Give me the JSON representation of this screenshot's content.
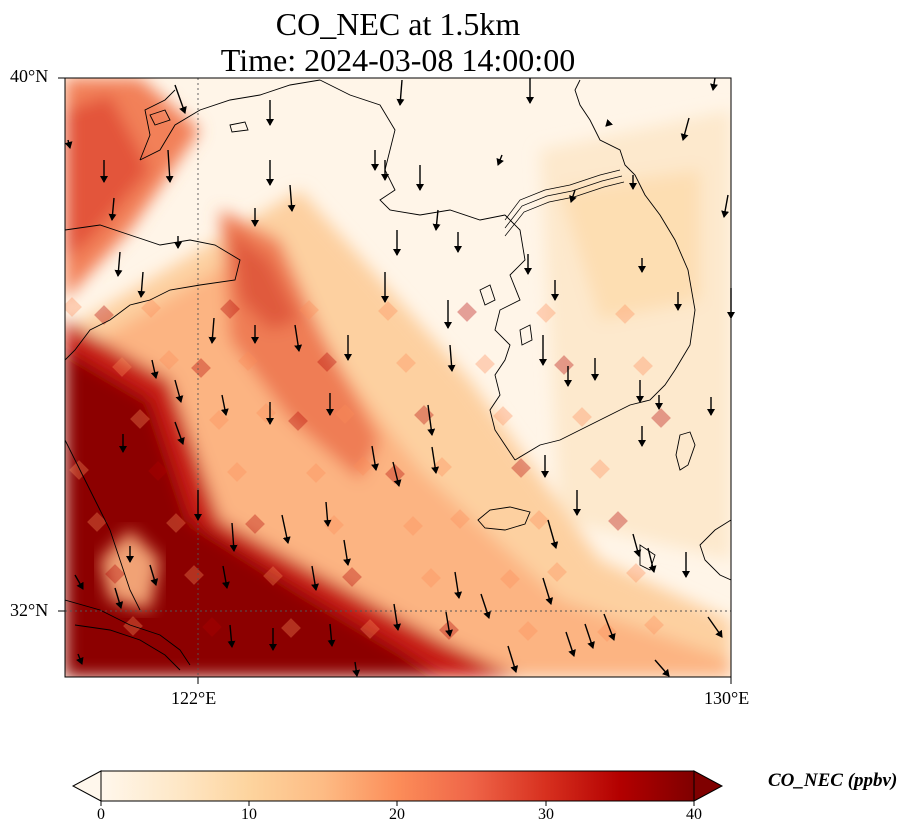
{
  "title": {
    "line1": "CO_NEC at 1.5km",
    "line2": "Time: 2024-03-08 14:00:00"
  },
  "axes": {
    "lat_labels": [
      "40°N",
      "32°N"
    ],
    "lon_labels": [
      "122°E",
      "130°E"
    ],
    "lat_range": [
      31,
      40
    ],
    "lon_range": [
      120,
      130
    ],
    "gridlines": {
      "lats": [
        32
      ],
      "lons": [
        122
      ],
      "style": "dotted"
    }
  },
  "colorbar": {
    "title": "CO_NEC (ppbv)",
    "ticks": [
      "0",
      "10",
      "20",
      "30",
      "40"
    ],
    "range": [
      0,
      40
    ],
    "colormap": "OrRd",
    "colors": [
      "#fff7ec",
      "#fee8c8",
      "#fdd49e",
      "#fdbb84",
      "#fc8d59",
      "#ef6548",
      "#d7301f",
      "#b30000",
      "#7f0000"
    ],
    "extend": "both"
  },
  "map_data": {
    "variable": "CO_NEC",
    "units": "ppbv",
    "height": "1.5km",
    "features": [
      "coastlines",
      "Korean Peninsula",
      "Shandong Peninsula",
      "Liaodong Peninsula",
      "Jeju Island",
      "Yellow Sea"
    ],
    "overlay": "wind vectors (arrows, mostly pointing south)"
  }
}
